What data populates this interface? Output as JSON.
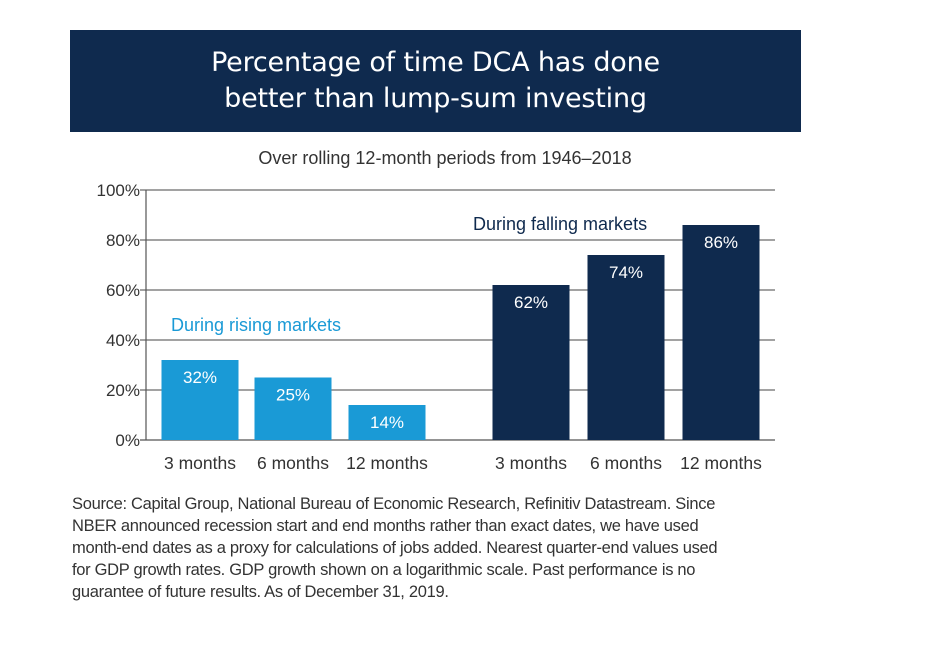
{
  "title_lines": [
    "Percentage of time DCA has done",
    "better than lump-sum investing"
  ],
  "subtitle": "Over rolling 12-month periods from 1946–2018",
  "chart_data": {
    "type": "bar",
    "title": "Percentage of time DCA has done better than lump-sum investing",
    "subtitle": "Over rolling 12-month periods from 1946–2018",
    "xlabel": "",
    "ylabel": "",
    "ylim": [
      0,
      100
    ],
    "yticks": [
      "0%",
      "20%",
      "40%",
      "60%",
      "80%",
      "100%"
    ],
    "grid": true,
    "groups": [
      {
        "label": "During rising markets",
        "color": "#1a9ad6",
        "categories": [
          "3 months",
          "6 months",
          "12 months"
        ],
        "values": [
          32,
          25,
          14
        ],
        "data_labels": [
          "32%",
          "25%",
          "14%"
        ]
      },
      {
        "label": "During falling markets",
        "color": "#0f2a4e",
        "categories": [
          "3 months",
          "6 months",
          "12 months"
        ],
        "values": [
          62,
          74,
          86
        ],
        "data_labels": [
          "62%",
          "74%",
          "86%"
        ]
      }
    ]
  },
  "source_lines": [
    "Source: Capital Group, National Bureau of Economic Research, Refinitiv Datastream. Since",
    "NBER announced recession start and end months rather than exact dates, we have used",
    "month-end dates as a proxy for calculations of jobs added. Nearest quarter-end values used",
    "for GDP growth rates. GDP growth shown on a logarithmic scale. Past performance is no",
    "guarantee of future results. As of December 31, 2019."
  ]
}
